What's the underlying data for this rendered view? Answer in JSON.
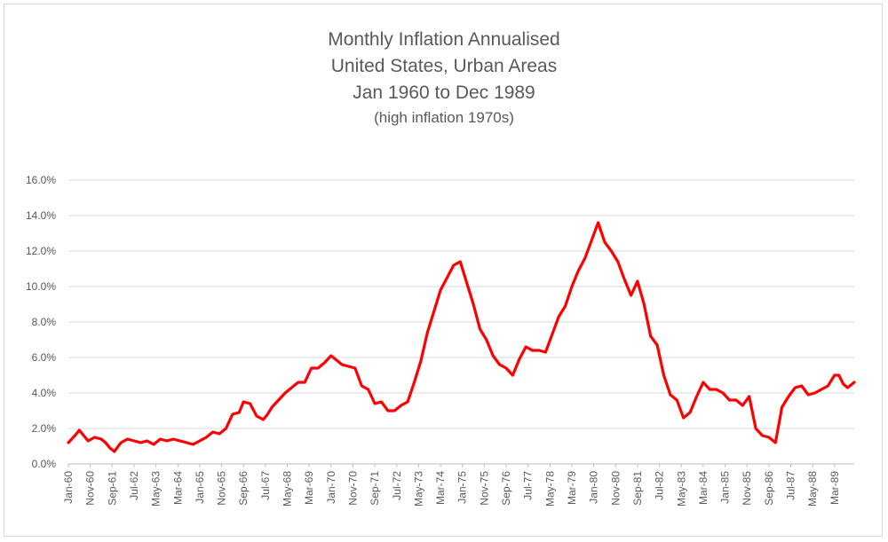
{
  "chart_data": {
    "type": "line",
    "title": "Monthly Inflation Annualised",
    "subtitle_lines": [
      "United States, Urban Areas",
      "Jan 1960 to Dec 1989",
      "(high inflation 1970s)"
    ],
    "xlabel": "",
    "ylabel": "",
    "ylim": [
      0,
      16
    ],
    "y_ticks": [
      "0.0%",
      "2.0%",
      "4.0%",
      "6.0%",
      "8.0%",
      "10.0%",
      "12.0%",
      "14.0%",
      "16.0%"
    ],
    "x_tick_labels": [
      "Jan-60",
      "Nov-60",
      "Sep-61",
      "Jul-62",
      "May-63",
      "Mar-64",
      "Jan-65",
      "Nov-65",
      "Sep-66",
      "Jul-67",
      "May-68",
      "Mar-69",
      "Jan-70",
      "Nov-70",
      "Sep-71",
      "Jul-72",
      "May-73",
      "Mar-74",
      "Jan-75",
      "Nov-75",
      "Sep-76",
      "Jul-77",
      "May-78",
      "Mar-79",
      "Jan-80",
      "Nov-80",
      "Sep-81",
      "Jul-82",
      "May-83",
      "Mar-84",
      "Jan-85",
      "Nov-85",
      "Sep-86",
      "Jul-87",
      "May-88",
      "Mar-89"
    ],
    "grid": true,
    "line_color": "#ff0000",
    "series": [
      {
        "x_start": "Jan-60",
        "x_end": "Dec-89",
        "points": [
          [
            "Jan-60",
            1.2
          ],
          [
            "Apr-60",
            1.6
          ],
          [
            "Jun-60",
            1.9
          ],
          [
            "Aug-60",
            1.6
          ],
          [
            "Oct-60",
            1.3
          ],
          [
            "Jan-61",
            1.5
          ],
          [
            "Apr-61",
            1.4
          ],
          [
            "Jun-61",
            1.2
          ],
          [
            "Aug-61",
            0.9
          ],
          [
            "Oct-61",
            0.7
          ],
          [
            "Jan-62",
            1.2
          ],
          [
            "Apr-62",
            1.4
          ],
          [
            "Jul-62",
            1.3
          ],
          [
            "Oct-62",
            1.2
          ],
          [
            "Jan-63",
            1.3
          ],
          [
            "Apr-63",
            1.1
          ],
          [
            "Jul-63",
            1.4
          ],
          [
            "Oct-63",
            1.3
          ],
          [
            "Jan-64",
            1.4
          ],
          [
            "Apr-64",
            1.3
          ],
          [
            "Jul-64",
            1.2
          ],
          [
            "Oct-64",
            1.1
          ],
          [
            "Jan-65",
            1.3
          ],
          [
            "Apr-65",
            1.5
          ],
          [
            "Jul-65",
            1.8
          ],
          [
            "Oct-65",
            1.7
          ],
          [
            "Jan-66",
            2.0
          ],
          [
            "Apr-66",
            2.8
          ],
          [
            "Jul-66",
            2.9
          ],
          [
            "Sep-66",
            3.5
          ],
          [
            "Dec-66",
            3.4
          ],
          [
            "Mar-67",
            2.7
          ],
          [
            "Jun-67",
            2.5
          ],
          [
            "Aug-67",
            2.8
          ],
          [
            "Oct-67",
            3.2
          ],
          [
            "Jan-68",
            3.6
          ],
          [
            "Apr-68",
            4.0
          ],
          [
            "Jul-68",
            4.3
          ],
          [
            "Oct-68",
            4.6
          ],
          [
            "Jan-69",
            4.6
          ],
          [
            "Apr-69",
            5.4
          ],
          [
            "Jul-69",
            5.4
          ],
          [
            "Oct-69",
            5.7
          ],
          [
            "Jan-70",
            6.1
          ],
          [
            "Mar-70",
            5.9
          ],
          [
            "Jun-70",
            5.6
          ],
          [
            "Sep-70",
            5.5
          ],
          [
            "Dec-70",
            5.4
          ],
          [
            "Mar-71",
            4.4
          ],
          [
            "Jun-71",
            4.2
          ],
          [
            "Sep-71",
            3.4
          ],
          [
            "Dec-71",
            3.5
          ],
          [
            "Mar-72",
            3.0
          ],
          [
            "Jun-72",
            3.0
          ],
          [
            "Sep-72",
            3.3
          ],
          [
            "Dec-72",
            3.5
          ],
          [
            "Mar-73",
            4.6
          ],
          [
            "Jun-73",
            5.8
          ],
          [
            "Sep-73",
            7.4
          ],
          [
            "Dec-73",
            8.6
          ],
          [
            "Mar-74",
            9.8
          ],
          [
            "Jun-74",
            10.5
          ],
          [
            "Sep-74",
            11.2
          ],
          [
            "Dec-74",
            11.4
          ],
          [
            "Mar-75",
            10.2
          ],
          [
            "Jun-75",
            9.0
          ],
          [
            "Sep-75",
            7.6
          ],
          [
            "Dec-75",
            7.0
          ],
          [
            "Mar-76",
            6.1
          ],
          [
            "Jun-76",
            5.6
          ],
          [
            "Sep-76",
            5.4
          ],
          [
            "Dec-76",
            5.0
          ],
          [
            "Mar-77",
            5.9
          ],
          [
            "Jun-77",
            6.6
          ],
          [
            "Sep-77",
            6.4
          ],
          [
            "Dec-77",
            6.4
          ],
          [
            "Mar-78",
            6.3
          ],
          [
            "Jun-78",
            7.3
          ],
          [
            "Sep-78",
            8.3
          ],
          [
            "Dec-78",
            8.9
          ],
          [
            "Mar-79",
            10.0
          ],
          [
            "Jun-79",
            10.9
          ],
          [
            "Sep-79",
            11.6
          ],
          [
            "Dec-79",
            12.6
          ],
          [
            "Mar-80",
            13.6
          ],
          [
            "Jun-80",
            12.5
          ],
          [
            "Sep-80",
            12.0
          ],
          [
            "Dec-80",
            11.4
          ],
          [
            "Mar-81",
            10.4
          ],
          [
            "Jun-81",
            9.5
          ],
          [
            "Sep-81",
            10.3
          ],
          [
            "Dec-81",
            9.0
          ],
          [
            "Mar-82",
            7.2
          ],
          [
            "Jun-82",
            6.7
          ],
          [
            "Sep-82",
            5.0
          ],
          [
            "Dec-82",
            3.9
          ],
          [
            "Mar-83",
            3.6
          ],
          [
            "Jun-83",
            2.6
          ],
          [
            "Sep-83",
            2.9
          ],
          [
            "Dec-83",
            3.8
          ],
          [
            "Mar-84",
            4.6
          ],
          [
            "Jun-84",
            4.2
          ],
          [
            "Sep-84",
            4.2
          ],
          [
            "Dec-84",
            4.0
          ],
          [
            "Mar-85",
            3.6
          ],
          [
            "Jun-85",
            3.6
          ],
          [
            "Sep-85",
            3.3
          ],
          [
            "Dec-85",
            3.8
          ],
          [
            "Mar-86",
            2.0
          ],
          [
            "Jun-86",
            1.6
          ],
          [
            "Sep-86",
            1.5
          ],
          [
            "Dec-86",
            1.2
          ],
          [
            "Mar-87",
            3.2
          ],
          [
            "Jun-87",
            3.8
          ],
          [
            "Sep-87",
            4.3
          ],
          [
            "Dec-87",
            4.4
          ],
          [
            "Mar-88",
            3.9
          ],
          [
            "Jun-88",
            4.0
          ],
          [
            "Sep-88",
            4.2
          ],
          [
            "Dec-88",
            4.4
          ],
          [
            "Mar-89",
            5.0
          ],
          [
            "May-89",
            5.0
          ],
          [
            "Jul-89",
            4.5
          ],
          [
            "Sep-89",
            4.3
          ],
          [
            "Dec-89",
            4.6
          ]
        ]
      }
    ]
  }
}
